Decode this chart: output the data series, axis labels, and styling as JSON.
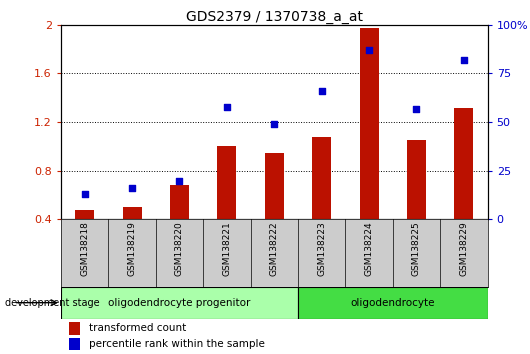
{
  "title": "GDS2379 / 1370738_a_at",
  "samples": [
    "GSM138218",
    "GSM138219",
    "GSM138220",
    "GSM138221",
    "GSM138222",
    "GSM138223",
    "GSM138224",
    "GSM138225",
    "GSM138229"
  ],
  "transformed_count": [
    0.48,
    0.5,
    0.68,
    1.0,
    0.95,
    1.08,
    1.97,
    1.05,
    1.32
  ],
  "percentile_rank_pct": [
    13,
    16,
    20,
    58,
    49,
    66,
    87,
    57,
    82
  ],
  "bar_color": "#bb1100",
  "dot_color": "#0000cc",
  "ylim_left": [
    0.4,
    2.0
  ],
  "ylim_right": [
    0,
    100
  ],
  "yticks_left": [
    0.4,
    0.8,
    1.2,
    1.6,
    2.0
  ],
  "ytick_labels_left": [
    "0.4",
    "0.8",
    "1.2",
    "1.6",
    "2"
  ],
  "yticks_right": [
    0,
    25,
    50,
    75,
    100
  ],
  "ytick_labels_right": [
    "0",
    "25",
    "50",
    "75",
    "100%"
  ],
  "group1_label": "oligodendrocyte progenitor",
  "group2_label": "oligodendrocyte",
  "group1_indices": [
    0,
    1,
    2,
    3,
    4
  ],
  "group2_indices": [
    5,
    6,
    7,
    8
  ],
  "dev_stage_label": "development stage",
  "legend_bar_label": "transformed count",
  "legend_dot_label": "percentile rank within the sample",
  "group1_color": "#aaffaa",
  "group2_color": "#44dd44",
  "label_box_color": "#cccccc",
  "bar_width": 0.4
}
